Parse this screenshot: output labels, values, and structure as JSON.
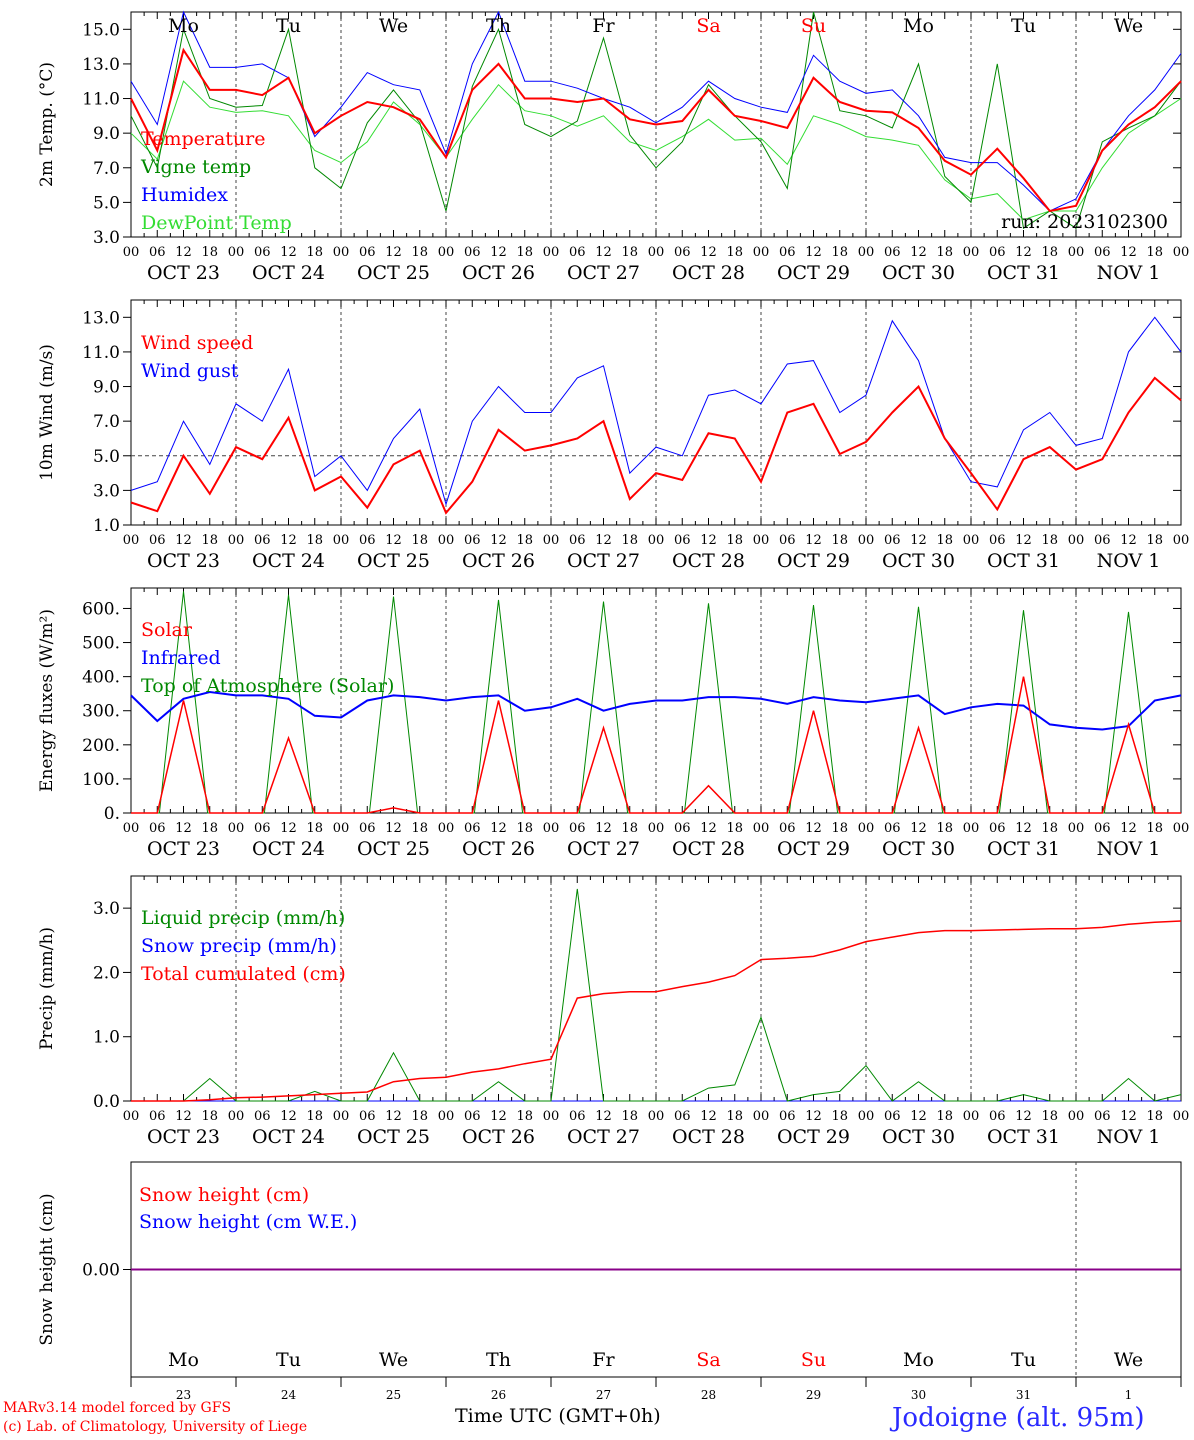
{
  "footer": {
    "model_line": "MARv3.14 model forced by GFS",
    "credit_line": "(c) Lab. of Climatology, University of Liege",
    "time_axis_label": "Time UTC (GMT+0h)",
    "location": "Jodoigne (alt. 95m)"
  },
  "weekdays": [
    "Mo",
    "Tu",
    "We",
    "Th",
    "Fr",
    "Sa",
    "Su",
    "Mo",
    "Tu",
    "We"
  ],
  "weekend_flags": [
    false,
    false,
    false,
    false,
    false,
    true,
    true,
    false,
    false,
    false
  ],
  "day_numbers": [
    "23",
    "24",
    "25",
    "26",
    "27",
    "28",
    "29",
    "30",
    "31",
    "1"
  ],
  "date_labels": [
    "OCT 23",
    "OCT 24",
    "OCT 25",
    "OCT 26",
    "OCT 27",
    "OCT 28",
    "OCT 29",
    "OCT 30",
    "OCT 31",
    "NOV  1"
  ],
  "hour_labels": [
    "00",
    "06",
    "12",
    "18"
  ],
  "hour_end_label": "00",
  "colors": {
    "red": "#ff0000",
    "green": "#008800",
    "blue": "#0000ff",
    "light_green": "#33dd33",
    "purple": "#880088"
  },
  "chart_data": [
    {
      "type": "line",
      "ylabel": "2m Temp. (°C)",
      "ylim": [
        3,
        16
      ],
      "yticks": [
        "3.0",
        "5.0",
        "7.0",
        "9.0",
        "11.0",
        "13.0",
        "15.0"
      ],
      "annotation": "run: 2023102300",
      "x_hours": [
        0,
        6,
        12,
        18,
        24,
        30,
        36,
        42,
        48,
        54,
        60,
        66,
        72,
        78,
        84,
        90,
        96,
        102,
        108,
        114,
        120,
        126,
        132,
        138,
        144,
        150,
        156,
        162,
        168,
        174,
        180,
        186,
        192,
        198,
        204,
        210,
        216,
        222,
        228,
        234,
        240
      ],
      "series": [
        {
          "name": "Temperature",
          "color": "red",
          "values": [
            11,
            8,
            13.8,
            11.5,
            11.5,
            11.2,
            12.2,
            9,
            10,
            10.8,
            10.5,
            9.8,
            7.6,
            11.5,
            13,
            11,
            11,
            10.8,
            11,
            9.8,
            9.5,
            9.7,
            11.5,
            10,
            9.7,
            9.3,
            12.2,
            10.8,
            10.3,
            10.2,
            9.3,
            7.4,
            6.6,
            8.1,
            6.4,
            4.5,
            4.8,
            8,
            9.5,
            10.5,
            12
          ]
        },
        {
          "name": "Vigne temp",
          "color": "green",
          "values": [
            10,
            7,
            15,
            11,
            10.5,
            10.6,
            15,
            7,
            5.8,
            9.6,
            11.5,
            9.6,
            4.5,
            11.7,
            15,
            9.5,
            8.8,
            9.7,
            14.5,
            8.9,
            7,
            8.5,
            11.8,
            10,
            8.5,
            5.8,
            16,
            10.3,
            10,
            9.3,
            13,
            6.5,
            5,
            13,
            3.5,
            4.5,
            3.5,
            8.5,
            9.3,
            10,
            12
          ]
        },
        {
          "name": "Humidex",
          "color": "blue",
          "values": [
            12,
            9.5,
            16,
            12.8,
            12.8,
            13,
            12.2,
            8.8,
            10.5,
            12.5,
            11.8,
            11.5,
            7.8,
            13,
            16,
            12,
            12,
            11.6,
            11,
            10.5,
            9.6,
            10.5,
            12,
            11,
            10.5,
            10.2,
            13.5,
            12,
            11.3,
            11.5,
            10,
            7.6,
            7.3,
            7.3,
            6,
            4.5,
            5.2,
            8,
            10,
            11.5,
            13.6
          ]
        },
        {
          "name": "DewPoint Temp",
          "color": "light_green",
          "values": [
            9,
            7.5,
            12,
            10.5,
            10.2,
            10.3,
            10,
            8,
            7.3,
            8.5,
            10.8,
            9.5,
            7.6,
            9.8,
            11.8,
            10.3,
            10,
            9.4,
            10,
            8.5,
            8,
            8.8,
            9.8,
            8.6,
            8.7,
            7.2,
            10,
            9.5,
            8.8,
            8.6,
            8.3,
            6.3,
            5.2,
            5.5,
            4,
            4.5,
            4.5,
            7,
            9,
            10,
            11
          ]
        }
      ]
    },
    {
      "type": "line",
      "ylabel": "10m Wind (m/s)",
      "ylim": [
        1,
        14
      ],
      "yticks": [
        "1.0",
        "3.0",
        "5.0",
        "7.0",
        "9.0",
        "11.0",
        "13.0"
      ],
      "reference_line": 5,
      "x_hours": [
        0,
        6,
        12,
        18,
        24,
        30,
        36,
        42,
        48,
        54,
        60,
        66,
        72,
        78,
        84,
        90,
        96,
        102,
        108,
        114,
        120,
        126,
        132,
        138,
        144,
        150,
        156,
        162,
        168,
        174,
        180,
        186,
        192,
        198,
        204,
        210,
        216,
        222,
        228,
        234,
        240
      ],
      "series": [
        {
          "name": "Wind speed",
          "color": "red",
          "values": [
            2.3,
            1.8,
            5,
            2.8,
            5.5,
            4.8,
            7.2,
            3,
            3.8,
            2,
            4.5,
            5.3,
            1.7,
            3.5,
            6.5,
            5.3,
            5.6,
            6,
            7,
            2.5,
            4,
            3.6,
            6.3,
            6,
            3.5,
            7.5,
            8,
            5.1,
            5.8,
            7.5,
            9,
            6,
            4,
            1.9,
            4.8,
            5.5,
            4.2,
            4.8,
            7.5,
            9.5,
            8.2
          ]
        },
        {
          "name": "Wind gust",
          "color": "blue",
          "values": [
            3,
            3.5,
            7,
            4.5,
            8,
            7,
            10,
            3.8,
            5,
            3,
            6,
            7.7,
            2.2,
            7,
            9,
            7.5,
            7.5,
            9.5,
            10.2,
            4,
            5.5,
            5,
            8.5,
            8.8,
            8,
            10.3,
            10.5,
            7.5,
            8.5,
            12.8,
            10.5,
            6,
            3.5,
            3.2,
            6.5,
            7.5,
            5.6,
            6,
            11,
            13,
            11
          ]
        }
      ]
    },
    {
      "type": "line",
      "ylabel": "Energy fluxes (W/m²)",
      "ylim": [
        0,
        660
      ],
      "yticks": [
        "0.",
        "100.",
        "200.",
        "300.",
        "400.",
        "500.",
        "600."
      ],
      "x_hours": [
        0,
        6,
        12,
        18,
        24,
        30,
        36,
        42,
        48,
        54,
        60,
        66,
        72,
        78,
        84,
        90,
        96,
        102,
        108,
        114,
        120,
        126,
        132,
        138,
        144,
        150,
        156,
        162,
        168,
        174,
        180,
        186,
        192,
        198,
        204,
        210,
        216,
        222,
        228,
        234,
        240
      ],
      "series": [
        {
          "name": "Solar",
          "color": "red",
          "values": [
            0,
            0,
            330,
            0,
            0,
            0,
            220,
            0,
            0,
            0,
            15,
            0,
            0,
            0,
            330,
            0,
            0,
            0,
            250,
            0,
            0,
            0,
            80,
            0,
            0,
            0,
            300,
            0,
            0,
            0,
            250,
            0,
            0,
            0,
            400,
            0,
            0,
            0,
            260,
            0,
            0
          ]
        },
        {
          "name": "Infrared",
          "color": "blue",
          "values": [
            345,
            270,
            335,
            355,
            345,
            345,
            335,
            285,
            280,
            330,
            345,
            340,
            330,
            340,
            345,
            300,
            310,
            335,
            300,
            320,
            330,
            330,
            340,
            340,
            335,
            320,
            340,
            330,
            325,
            335,
            345,
            290,
            310,
            320,
            315,
            260,
            250,
            245,
            255,
            330,
            345
          ]
        },
        {
          "name": "Top of Atmosphere (Solar)",
          "color": "green",
          "peaks": [
            650,
            640,
            635,
            625,
            620,
            615,
            610,
            605,
            595,
            590
          ]
        }
      ]
    },
    {
      "type": "line",
      "ylabel": "Precip (mm/h)",
      "ylim": [
        0,
        3.5
      ],
      "yticks": [
        "0.0",
        "1.0",
        "2.0",
        "3.0"
      ],
      "x_hours": [
        0,
        6,
        12,
        18,
        24,
        30,
        36,
        42,
        48,
        54,
        60,
        66,
        72,
        78,
        84,
        90,
        96,
        102,
        108,
        114,
        120,
        126,
        132,
        138,
        144,
        150,
        156,
        162,
        168,
        174,
        180,
        186,
        192,
        198,
        204,
        210,
        216,
        222,
        228,
        234,
        240
      ],
      "series": [
        {
          "name": "Liquid precip (mm/h)",
          "color": "green",
          "values": [
            0,
            0,
            0,
            0.35,
            0,
            0,
            0,
            0.15,
            0,
            0,
            0.75,
            0,
            0,
            0,
            0.3,
            0,
            0,
            3.3,
            0,
            0,
            0,
            0,
            0.2,
            0.25,
            1.3,
            0,
            0.1,
            0.15,
            0.55,
            0,
            0.3,
            0,
            0,
            0,
            0.1,
            0,
            0,
            0,
            0.35,
            0,
            0.1
          ]
        },
        {
          "name": "Snow precip (mm/h)",
          "color": "blue",
          "values": [
            0,
            0,
            0,
            0,
            0,
            0,
            0,
            0,
            0,
            0,
            0,
            0,
            0,
            0,
            0,
            0,
            0,
            0,
            0,
            0,
            0,
            0,
            0,
            0,
            0,
            0,
            0,
            0,
            0,
            0,
            0,
            0,
            0,
            0,
            0,
            0,
            0,
            0,
            0,
            0,
            0
          ]
        },
        {
          "name": "Total cumulated (cm)",
          "color": "red",
          "values": [
            0,
            0,
            0,
            0.02,
            0.05,
            0.06,
            0.08,
            0.1,
            0.12,
            0.14,
            0.3,
            0.35,
            0.37,
            0.45,
            0.5,
            0.58,
            0.65,
            1.6,
            1.67,
            1.7,
            1.7,
            1.78,
            1.85,
            1.95,
            2.2,
            2.22,
            2.25,
            2.35,
            2.48,
            2.55,
            2.62,
            2.65,
            2.65,
            2.66,
            2.67,
            2.68,
            2.68,
            2.7,
            2.75,
            2.78,
            2.8
          ]
        }
      ]
    },
    {
      "type": "line",
      "ylabel": "Snow height (cm)",
      "ylim": [
        -1,
        1
      ],
      "yticks": [
        "0.00"
      ],
      "series": [
        {
          "name": "Snow height (cm)",
          "color": "red",
          "values": [
            0,
            0
          ]
        },
        {
          "name": "Snow height (cm W.E.)",
          "color": "blue",
          "values": [
            0,
            0
          ]
        }
      ]
    }
  ]
}
